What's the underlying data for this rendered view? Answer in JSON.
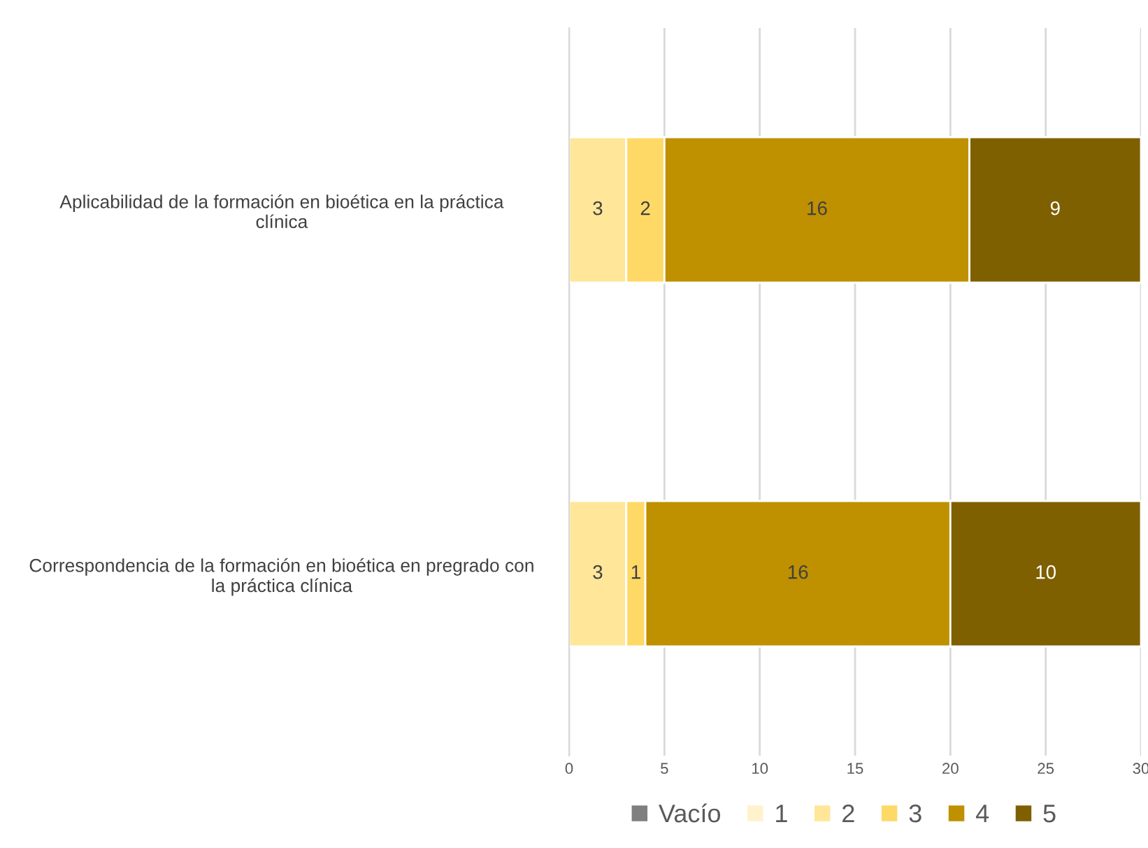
{
  "chart_data": {
    "type": "bar",
    "orientation": "horizontal",
    "stacked": true,
    "categories": [
      "Aplicabilidad de la formación en bioética en la práctica clínica",
      "Correspondencia de la formación en bioética en pregrado con la práctica clínica"
    ],
    "series": [
      {
        "name": "Vacío",
        "color": "#7f7f7f",
        "values": [
          0,
          0
        ],
        "value_labels": [
          null,
          null
        ]
      },
      {
        "name": "1",
        "color": "#fff2cc",
        "values": [
          0,
          0
        ],
        "value_labels": [
          null,
          null
        ]
      },
      {
        "name": "2",
        "color": "#ffe699",
        "values": [
          3,
          3
        ],
        "value_labels": [
          "3",
          "3"
        ]
      },
      {
        "name": "3",
        "color": "#ffd966",
        "values": [
          2,
          1
        ],
        "value_labels": [
          "2",
          "1"
        ]
      },
      {
        "name": "4",
        "color": "#bf9000",
        "values": [
          16,
          16
        ],
        "value_labels": [
          "16",
          "16"
        ]
      },
      {
        "name": "5",
        "color": "#7f6000",
        "values": [
          9,
          10
        ],
        "value_labels": [
          "9",
          "10"
        ]
      }
    ],
    "xlim": [
      0,
      30
    ],
    "xticks": [
      0,
      5,
      10,
      15,
      20,
      25,
      30
    ],
    "grid": "x",
    "legend": "bottom"
  }
}
